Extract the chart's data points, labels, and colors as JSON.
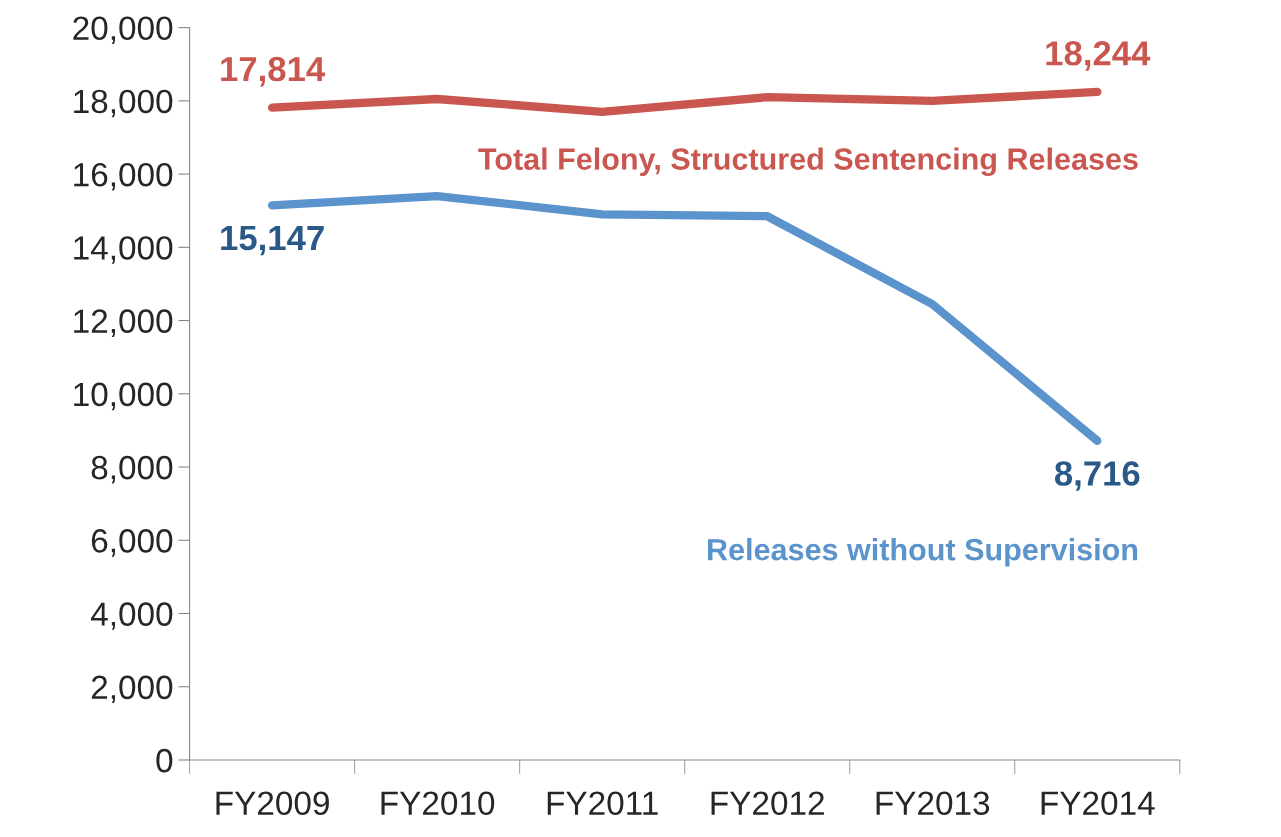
{
  "chart_data": {
    "type": "line",
    "categories": [
      "FY2009",
      "FY2010",
      "FY2011",
      "FY2012",
      "FY2013",
      "FY2014"
    ],
    "series": [
      {
        "name": "Total Felony, Structured Sentencing Releases",
        "color": "#c9574f",
        "values": [
          17814,
          18050,
          17700,
          18100,
          18000,
          18244
        ],
        "value_labels": [
          "17,814",
          null,
          null,
          null,
          null,
          "18,244"
        ]
      },
      {
        "name": "Releases without Supervision",
        "color": "#5b93cc",
        "values": [
          15147,
          15400,
          14900,
          14850,
          12450,
          8716
        ],
        "value_labels": [
          "15,147",
          null,
          null,
          null,
          null,
          "8,716"
        ]
      }
    ],
    "ylim": [
      0,
      20000
    ],
    "yticks": [
      {
        "value": 0,
        "label": "0"
      },
      {
        "value": 2000,
        "label": "2,000"
      },
      {
        "value": 4000,
        "label": "4,000"
      },
      {
        "value": 6000,
        "label": "6,000"
      },
      {
        "value": 8000,
        "label": "8,000"
      },
      {
        "value": 10000,
        "label": "10,000"
      },
      {
        "value": 12000,
        "label": "12,000"
      },
      {
        "value": 14000,
        "label": "14,000"
      },
      {
        "value": 16000,
        "label": "16,000"
      },
      {
        "value": 18000,
        "label": "18,000"
      },
      {
        "value": 20000,
        "label": "20,000"
      }
    ],
    "grid": false,
    "legend": false
  }
}
